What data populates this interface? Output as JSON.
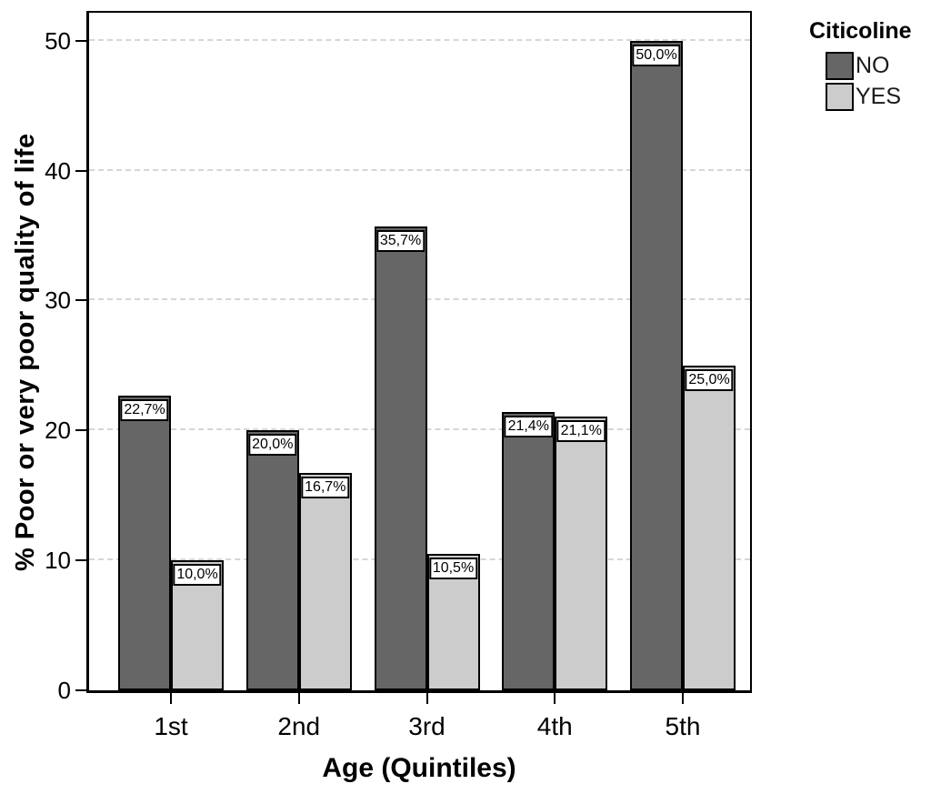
{
  "chart_data": {
    "type": "bar",
    "title": "",
    "xlabel": "Age (Quintiles)",
    "ylabel": "% Poor or very poor quality of life",
    "legend_title": "Citicoline",
    "legend_position": "top-right-outside",
    "categories": [
      "1st",
      "2nd",
      "3rd",
      "4th",
      "5th"
    ],
    "series": [
      {
        "name": "NO",
        "color": "#666666",
        "values": [
          22.7,
          20.0,
          35.7,
          21.4,
          50.0
        ],
        "labels": [
          "22,7%",
          "20,0%",
          "35,7%",
          "21,4%",
          "50,0%"
        ]
      },
      {
        "name": "YES",
        "color": "#cccccc",
        "values": [
          10.0,
          16.7,
          10.5,
          21.1,
          25.0
        ],
        "labels": [
          "10,0%",
          "16,7%",
          "10,5%",
          "21,1%",
          "25,0%"
        ]
      }
    ],
    "ylim": [
      0,
      52.5
    ],
    "yticks": [
      0,
      10,
      20,
      30,
      40,
      50
    ],
    "grid": "horizontal-dashed",
    "gridline_color": "#d6d6d6",
    "bar_border_color": "#000000",
    "value_label_style": "white box with black border inside bar top"
  }
}
